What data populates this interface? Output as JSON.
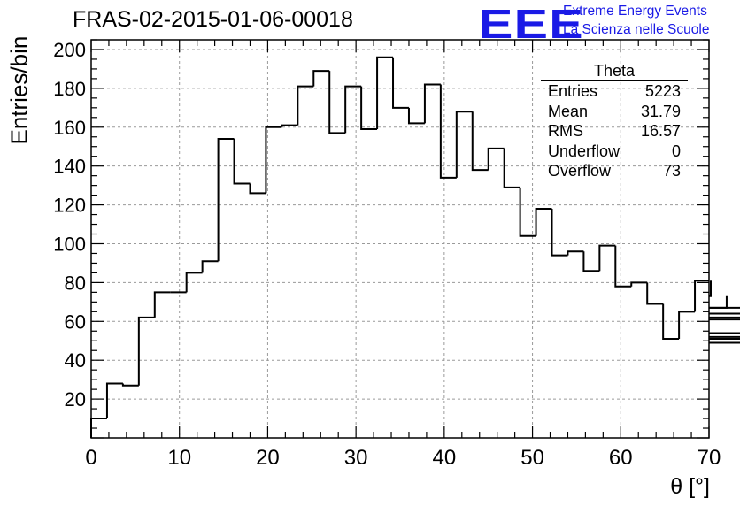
{
  "chart_data": {
    "type": "histogram",
    "title": "FRAS-02-2015-01-06-00018",
    "xlabel": "θ [°]",
    "ylabel": "Entries/bin",
    "xlim": [
      0,
      70
    ],
    "ylim": [
      0,
      205
    ],
    "bin_width": 1.8,
    "bin_start": 0,
    "grid": true,
    "xticks": [
      0,
      10,
      20,
      30,
      40,
      50,
      60,
      70
    ],
    "yticks": [
      20,
      40,
      60,
      80,
      100,
      120,
      140,
      160,
      180,
      200
    ],
    "values": [
      10,
      28,
      27,
      62,
      75,
      75,
      85,
      91,
      154,
      131,
      126,
      160,
      161,
      181,
      189,
      157,
      181,
      159,
      196,
      170,
      162,
      182,
      134,
      168,
      138,
      149,
      129,
      104,
      118,
      94,
      96,
      86,
      99,
      78,
      80,
      69,
      51,
      65,
      81,
      73,
      67,
      61,
      67,
      64,
      51,
      62,
      52,
      49,
      54,
      49
    ]
  },
  "stats_box": {
    "header": "Theta",
    "rows": [
      {
        "label": "Entries",
        "value": "5223"
      },
      {
        "label": "Mean",
        "value": "31.79"
      },
      {
        "label": "RMS",
        "value": "16.57"
      },
      {
        "label": "Underflow",
        "value": "0"
      },
      {
        "label": "Overflow",
        "value": "73"
      }
    ]
  },
  "logo": {
    "mark": "EEE",
    "line1": "Extreme Energy Events",
    "line2": "La Scienza nelle Scuole",
    "color": "#1a1ae6"
  },
  "colors": {
    "line": "#000000",
    "grid": "#9a9a9a"
  }
}
